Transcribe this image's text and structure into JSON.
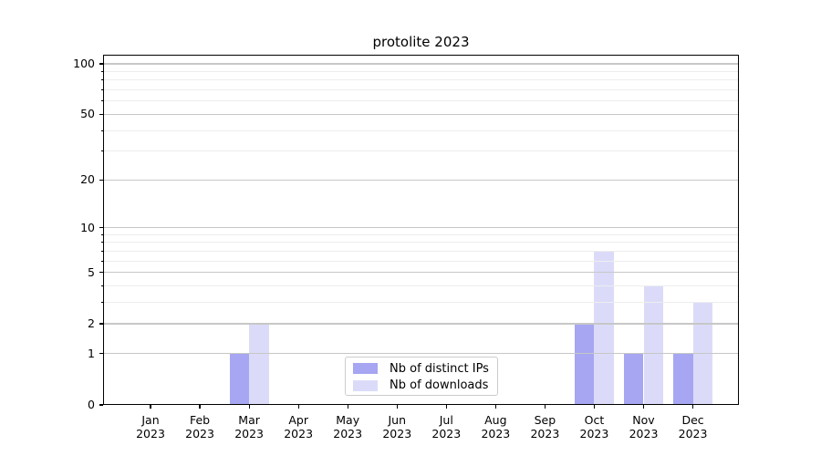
{
  "chart_data": {
    "type": "bar",
    "title": "protolite 2023",
    "categories": [
      "Jan 2023",
      "Feb 2023",
      "Mar 2023",
      "Apr 2023",
      "May 2023",
      "Jun 2023",
      "Jul 2023",
      "Aug 2023",
      "Sep 2023",
      "Oct 2023",
      "Nov 2023",
      "Dec 2023"
    ],
    "series": [
      {
        "name": "Nb of distinct IPs",
        "color": "#a6a6f2",
        "values": [
          0,
          0,
          1,
          0,
          0,
          0,
          0,
          0,
          0,
          2,
          1,
          1
        ]
      },
      {
        "name": "Nb of downloads",
        "color": "#dbdbf9",
        "values": [
          0,
          0,
          2,
          0,
          0,
          0,
          0,
          0,
          0,
          7,
          4,
          3
        ]
      }
    ],
    "y_axis": {
      "scale": "log1p",
      "ticks": [
        0,
        1,
        2,
        5,
        10,
        20,
        50,
        100
      ],
      "tick_labels": [
        "0",
        "1",
        "2",
        "5",
        "10",
        "20",
        "50",
        "100"
      ],
      "minor_ticks": [
        3,
        4,
        6,
        7,
        8,
        9,
        30,
        40,
        60,
        70,
        80,
        90
      ],
      "ylim": [
        0,
        113
      ]
    },
    "xlabel": "",
    "ylabel": "",
    "grid": {
      "enabled": true,
      "major_color": "#c7c7c7",
      "minor_color": "#ededed"
    },
    "legend": {
      "position": "lower-center-inside"
    }
  }
}
